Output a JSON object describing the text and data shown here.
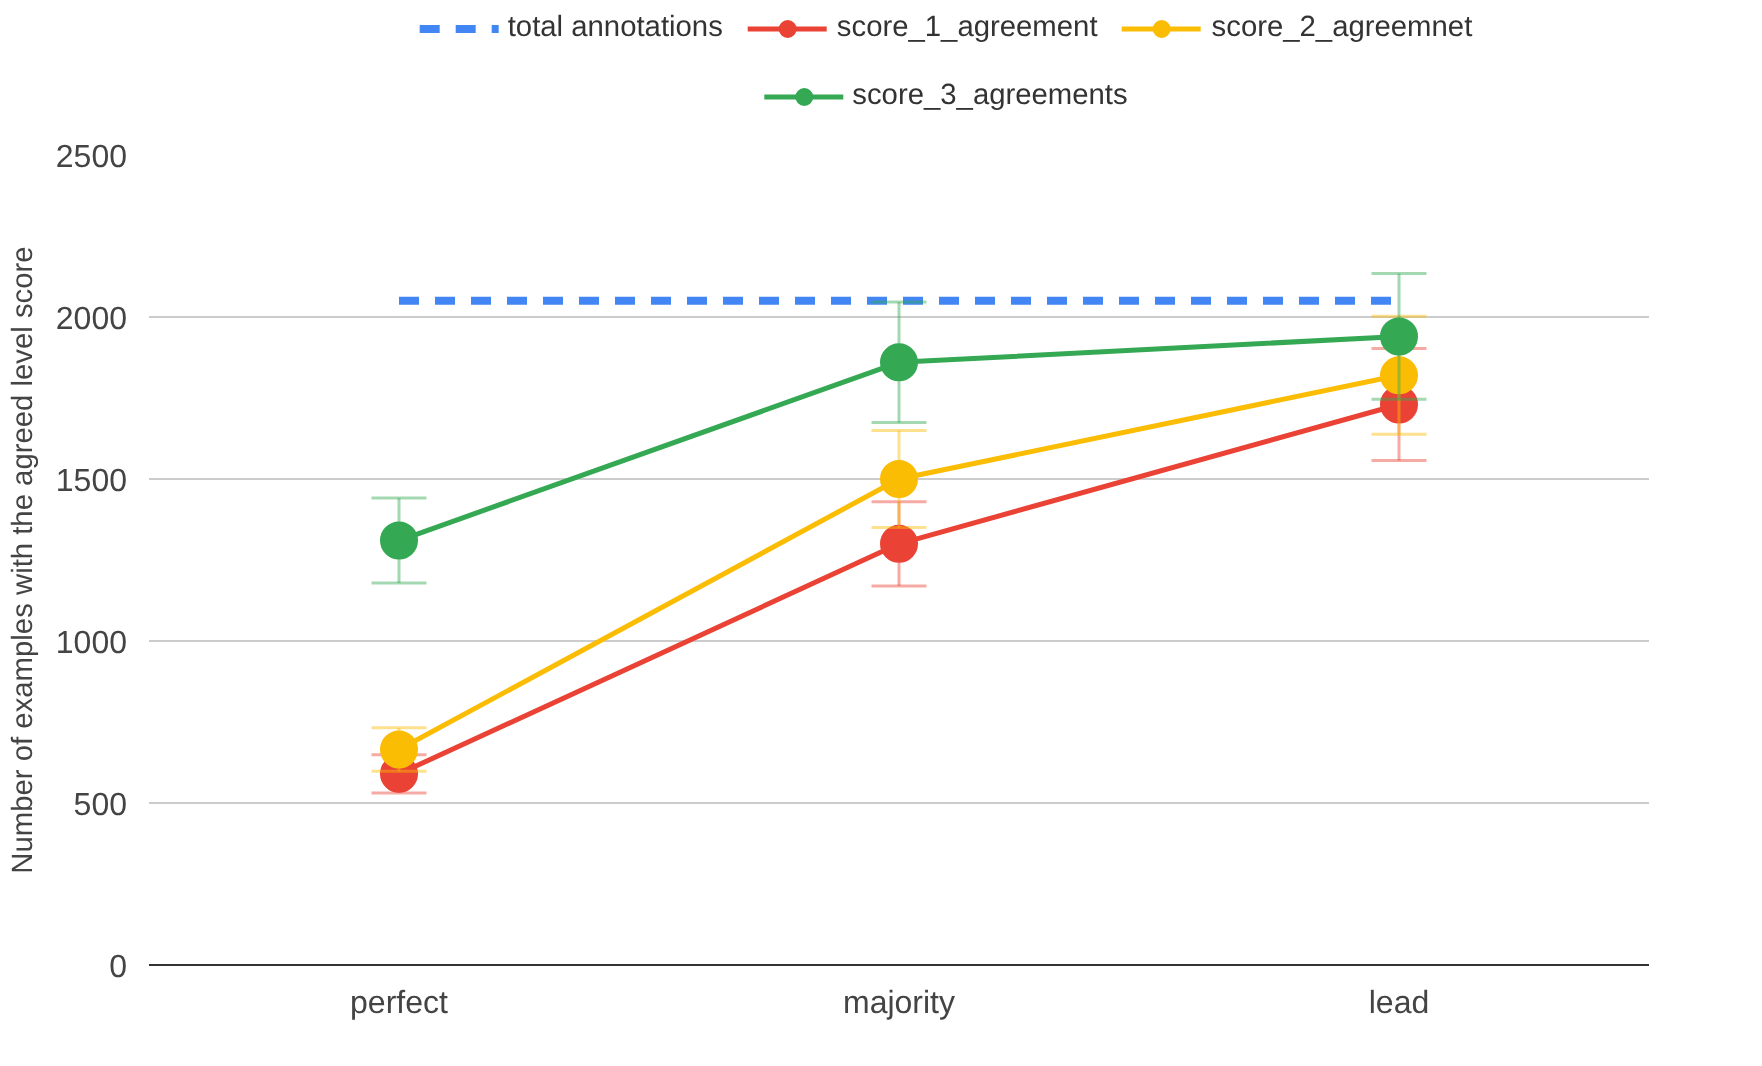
{
  "chart_data": {
    "type": "line",
    "ylabel": "Number of examples with the agreed level score",
    "categories": [
      "perfect",
      "majority",
      "lead"
    ],
    "series": [
      {
        "name": "total annotations",
        "color": "#4285f4",
        "values": [
          2050,
          2050,
          2050
        ],
        "line_style": "dashed",
        "marker": "none"
      },
      {
        "name": "score_1_agreement",
        "color": "#ea4335",
        "values": [
          590,
          1300,
          1730
        ],
        "errors": [
          59,
          130,
          173
        ]
      },
      {
        "name": "score_2_agreemnet",
        "color": "#fbbc04",
        "values": [
          665,
          1500,
          1820
        ],
        "errors": [
          67,
          150,
          182
        ]
      },
      {
        "name": "score_3_agreements",
        "color": "#34a853",
        "values": [
          1310,
          1860,
          1940
        ],
        "errors": [
          131,
          186,
          194
        ]
      }
    ],
    "ylim": [
      0,
      2500
    ],
    "yticks": [
      0,
      500,
      1000,
      1500,
      2000,
      2500
    ],
    "grid": "y",
    "legend": "top",
    "marker": "circle",
    "line_style": "solid"
  }
}
